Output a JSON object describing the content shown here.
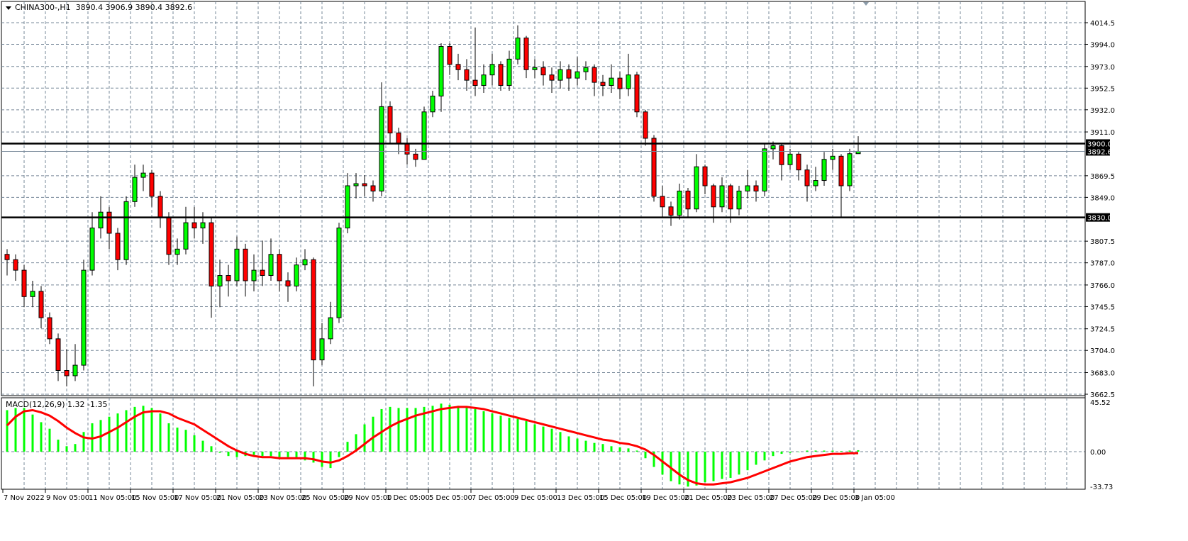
{
  "header": {
    "symbol": "CHINA300-,H1",
    "ohlc_text": "3890.4 3906.9 3890.4 3892.6"
  },
  "macd_label": {
    "name": "MACD(12,26,9)",
    "main": "1.32",
    "signal": "-1.35"
  },
  "colors": {
    "bull": "#00ff00",
    "bear": "#ff0000",
    "grid": "#778899",
    "signal": "#ff0000",
    "histogram": "#00ff00",
    "level_line": "#000000",
    "bid_line": "#778899"
  },
  "chart_data": [
    {
      "type": "candlestick",
      "title": "CHINA300-,H1",
      "grid": true,
      "ylim": [
        3662.5,
        4014.5
      ],
      "y_ticks": [
        "4014.5",
        "3994.0",
        "3973.0",
        "3952.5",
        "3932.0",
        "3911.0",
        "3869.5",
        "3849.0",
        "3807.5",
        "3787.0",
        "3766.0",
        "3745.5",
        "3724.5",
        "3704.0",
        "3683.0",
        "3662.5"
      ],
      "x_ticks": [
        "7 Nov 2022",
        "9 Nov 05:00",
        "11 Nov 05:00",
        "15 Nov 05:00",
        "17 Nov 05:00",
        "21 Nov 05:00",
        "23 Nov 05:00",
        "25 Nov 05:00",
        "29 Nov 05:00",
        "1 Dec 05:00",
        "5 Dec 05:00",
        "7 Dec 05:00",
        "9 Dec 05:00",
        "13 Dec 05:00",
        "15 Dec 05:00",
        "19 Dec 05:00",
        "21 Dec 05:00",
        "23 Dec 05:00",
        "27 Dec 05:00",
        "29 Dec 05:00",
        "3 Jan 05:00"
      ],
      "levels": [
        {
          "value": 3900.0,
          "label": "3900.0"
        },
        {
          "value": 3830.0,
          "label": "3830.0"
        }
      ],
      "bid": {
        "value": 3892.6,
        "label": "3892.6"
      },
      "first_open": 3795,
      "close": [
        3790,
        3780,
        3755,
        3760,
        3735,
        3715,
        3685,
        3680,
        3690,
        3780,
        3820,
        3835,
        3815,
        3790,
        3845,
        3868,
        3872,
        3850,
        3830,
        3795,
        3800,
        3825,
        3820,
        3825,
        3765,
        3775,
        3770,
        3800,
        3770,
        3780,
        3775,
        3795,
        3770,
        3765,
        3785,
        3790,
        3695,
        3715,
        3735,
        3820,
        3860,
        3862,
        3860,
        3855,
        3935,
        3910,
        3900,
        3890,
        3885,
        3930,
        3945,
        3992,
        3975,
        3970,
        3960,
        3955,
        3965,
        3975,
        3955,
        3980,
        4000,
        3970,
        3972,
        3965,
        3960,
        3970,
        3962,
        3968,
        3972,
        3958,
        3955,
        3962,
        3952,
        3965,
        3930,
        3905,
        3850,
        3840,
        3832,
        3855,
        3838,
        3878,
        3860,
        3840,
        3860,
        3838,
        3855,
        3860,
        3855,
        3895,
        3898,
        3880,
        3890,
        3875,
        3860,
        3865,
        3885,
        3888,
        3860,
        3890.4,
        3892.6
      ],
      "high": [
        3800,
        3795,
        3785,
        3770,
        3765,
        3740,
        3720,
        3705,
        3710,
        3790,
        3835,
        3850,
        3840,
        3820,
        3850,
        3880,
        3880,
        3875,
        3855,
        3835,
        3810,
        3840,
        3840,
        3835,
        3830,
        3790,
        3785,
        3812,
        3805,
        3795,
        3808,
        3810,
        3800,
        3778,
        3792,
        3800,
        3792,
        3730,
        3750,
        3825,
        3872,
        3872,
        3870,
        3865,
        3958,
        3940,
        3915,
        3905,
        3895,
        3935,
        3950,
        3995,
        3995,
        3985,
        3980,
        4010,
        3975,
        3985,
        3978,
        3988,
        4012,
        4002,
        3980,
        3978,
        3972,
        3978,
        3975,
        3982,
        3978,
        3975,
        3965,
        3975,
        3968,
        3985,
        3968,
        3932,
        3908,
        3860,
        3845,
        3862,
        3858,
        3890,
        3880,
        3862,
        3868,
        3862,
        3860,
        3875,
        3865,
        3900,
        3902,
        3900,
        3895,
        3892,
        3880,
        3878,
        3892,
        3895,
        3890,
        3895,
        3906.9
      ],
      "low": [
        3775,
        3770,
        3745,
        3745,
        3725,
        3710,
        3675,
        3670,
        3675,
        3685,
        3775,
        3810,
        3800,
        3780,
        3785,
        3840,
        3855,
        3840,
        3820,
        3785,
        3785,
        3795,
        3810,
        3805,
        3735,
        3745,
        3755,
        3765,
        3755,
        3760,
        3765,
        3770,
        3760,
        3750,
        3760,
        3780,
        3670,
        3690,
        3710,
        3730,
        3815,
        3848,
        3850,
        3845,
        3850,
        3900,
        3890,
        3880,
        3878,
        3900,
        3925,
        3930,
        3965,
        3960,
        3950,
        3945,
        3948,
        3955,
        3950,
        3950,
        3975,
        3962,
        3962,
        3955,
        3948,
        3952,
        3950,
        3955,
        3960,
        3945,
        3945,
        3948,
        3942,
        3945,
        3925,
        3898,
        3845,
        3830,
        3822,
        3828,
        3830,
        3835,
        3852,
        3825,
        3835,
        3825,
        3832,
        3848,
        3845,
        3850,
        3885,
        3865,
        3875,
        3865,
        3845,
        3855,
        3860,
        3875,
        3830,
        3855,
        3890.4
      ]
    },
    {
      "type": "bar+line",
      "title": "MACD(12,26,9)",
      "ylim": [
        -33.73,
        45.52
      ],
      "y_ticks": [
        "45.52",
        "0.00",
        "-33.73"
      ],
      "series": [
        {
          "name": "MACD",
          "type": "bar",
          "values": [
            38,
            40,
            40,
            34,
            27,
            21,
            11,
            5,
            7,
            18,
            26,
            29,
            32,
            35,
            38,
            41,
            42,
            40,
            35,
            26,
            22,
            20,
            15,
            10,
            5,
            -1,
            -4,
            -5,
            -4,
            -3,
            -4,
            -4,
            -5,
            -5,
            -6,
            -8,
            -10,
            -14,
            -15,
            -5,
            9,
            16,
            25,
            32,
            39,
            41,
            40,
            40,
            40,
            41,
            42,
            44,
            43,
            42,
            41,
            39,
            37,
            35,
            33,
            31,
            30,
            28,
            25,
            23,
            21,
            18,
            14,
            12,
            10,
            8,
            7,
            5,
            4,
            3,
            1,
            -6,
            -14,
            -21,
            -27,
            -30,
            -32,
            -31,
            -28,
            -27,
            -25,
            -24,
            -21,
            -17,
            -12,
            -8,
            -4,
            -2,
            -1,
            0,
            1,
            1,
            1,
            1,
            0.5,
            1,
            1.32
          ]
        },
        {
          "name": "Signal",
          "type": "line",
          "values": [
            24,
            32,
            37,
            38,
            36,
            33,
            28,
            22,
            17,
            13,
            12,
            14,
            18,
            22,
            27,
            32,
            36,
            37,
            37,
            35,
            31,
            28,
            25,
            20,
            15,
            10,
            5,
            1,
            -2,
            -4,
            -5,
            -5,
            -6,
            -6,
            -6,
            -6,
            -7,
            -9,
            -10,
            -8,
            -4,
            1,
            7,
            13,
            18,
            23,
            27,
            30,
            33,
            35,
            37,
            39,
            40,
            41,
            41,
            40,
            39,
            37,
            35,
            33,
            31,
            29,
            27,
            25,
            23,
            21,
            19,
            17,
            15,
            13,
            11,
            10,
            8,
            7,
            5,
            2,
            -3,
            -9,
            -15,
            -21,
            -26,
            -29,
            -30,
            -30,
            -29,
            -28,
            -26,
            -24,
            -21,
            -18,
            -15,
            -12,
            -9,
            -7,
            -5,
            -4,
            -3,
            -2,
            -2,
            -1.5,
            -1.35
          ]
        }
      ]
    }
  ]
}
